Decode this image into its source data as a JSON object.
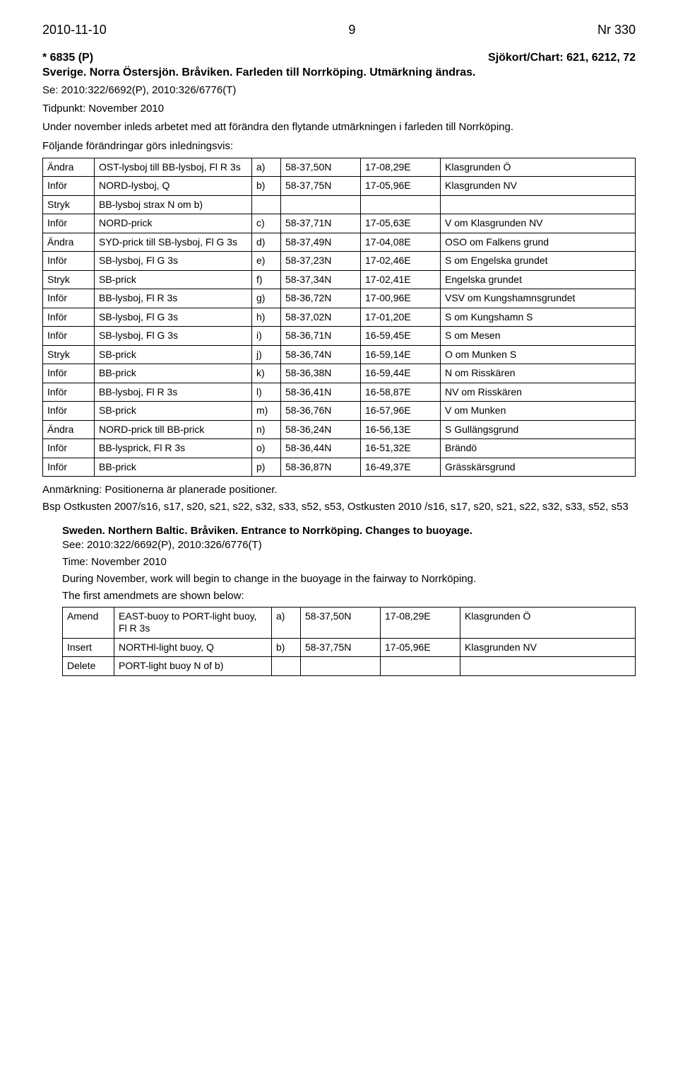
{
  "header": {
    "date": "2010-11-10",
    "page": "9",
    "issue": "Nr 330"
  },
  "notice": {
    "ref": "* 6835 (P)",
    "chart": "Sjökort/Chart: 621, 6212, 72",
    "title": "Sverige. Norra Östersjön. Bråviken. Farleden till Norrköping. Utmärkning ändras.",
    "see": "Se: 2010:322/6692(P), 2010:326/6776(T)",
    "time": "Tidpunkt: November 2010",
    "intro1": "Under november inleds arbetet med att förändra den flytande utmärkningen i farleden till Norrköping.",
    "intro2": "Följande förändringar görs inledningsvis:"
  },
  "rows": [
    {
      "a": "Ändra",
      "d": "OST-lysboj till BB-lysboj, Fl R 3s",
      "l": "a)",
      "lat": "58-37,50N",
      "lon": "17-08,29E",
      "n": "Klasgrunden Ö"
    },
    {
      "a": "Inför",
      "d": "NORD-lysboj, Q",
      "l": "b)",
      "lat": "58-37,75N",
      "lon": "17-05,96E",
      "n": "Klasgrunden NV"
    },
    {
      "a": "Stryk",
      "d": "BB-lysboj strax N om b)",
      "l": "",
      "lat": "",
      "lon": "",
      "n": ""
    },
    {
      "a": "Inför",
      "d": "NORD-prick",
      "l": "c)",
      "lat": "58-37,71N",
      "lon": "17-05,63E",
      "n": "V om Klasgrunden NV"
    },
    {
      "a": "Ändra",
      "d": "SYD-prick till SB-lysboj, Fl G 3s",
      "l": "d)",
      "lat": "58-37,49N",
      "lon": "17-04,08E",
      "n": "OSO om Falkens grund"
    },
    {
      "a": "Inför",
      "d": "SB-lysboj, Fl G 3s",
      "l": "e)",
      "lat": "58-37,23N",
      "lon": "17-02,46E",
      "n": "S om Engelska grundet"
    },
    {
      "a": "Stryk",
      "d": "SB-prick",
      "l": "f)",
      "lat": "58-37,34N",
      "lon": "17-02,41E",
      "n": "Engelska grundet"
    },
    {
      "a": "Inför",
      "d": "BB-lysboj, Fl R 3s",
      "l": "g)",
      "lat": "58-36,72N",
      "lon": "17-00,96E",
      "n": "VSV om Kungshamnsgrundet"
    },
    {
      "a": "Inför",
      "d": "SB-lysboj, Fl G 3s",
      "l": "h)",
      "lat": "58-37,02N",
      "lon": "17-01,20E",
      "n": "S om Kungshamn S"
    },
    {
      "a": "Inför",
      "d": "SB-lysboj, Fl G 3s",
      "l": "i)",
      "lat": "58-36,71N",
      "lon": "16-59,45E",
      "n": "S om Mesen"
    },
    {
      "a": "Stryk",
      "d": "SB-prick",
      "l": "j)",
      "lat": "58-36,74N",
      "lon": "16-59,14E",
      "n": "O om Munken S"
    },
    {
      "a": "Inför",
      "d": "BB-prick",
      "l": "k)",
      "lat": "58-36,38N",
      "lon": "16-59,44E",
      "n": "N om Risskären"
    },
    {
      "a": "Inför",
      "d": "BB-lysboj, Fl R 3s",
      "l": "l)",
      "lat": "58-36,41N",
      "lon": "16-58,87E",
      "n": "NV om Risskären"
    },
    {
      "a": "Inför",
      "d": "SB-prick",
      "l": "m)",
      "lat": "58-36,76N",
      "lon": "16-57,96E",
      "n": "V om Munken"
    },
    {
      "a": "Ändra",
      "d": "NORD-prick till BB-prick",
      "l": "n)",
      "lat": "58-36,24N",
      "lon": "16-56,13E",
      "n": "S Gullängsgrund"
    },
    {
      "a": "Inför",
      "d": "BB-lysprick, Fl R 3s",
      "l": "o)",
      "lat": "58-36,44N",
      "lon": "16-51,32E",
      "n": "Brändö"
    },
    {
      "a": "Inför",
      "d": "BB-prick",
      "l": "p)",
      "lat": "58-36,87N",
      "lon": "16-49,37E",
      "n": "Grässkärsgrund"
    }
  ],
  "remark": "Anmärkning: Positionerna är planerade positioner.",
  "refs": "Bsp Ostkusten 2007/s16, s17, s20, s21, s22, s32, s33, s52, s53, Ostkusten 2010 /s16, s17, s20, s21, s22, s32, s33, s52, s53",
  "en": {
    "title": "Sweden. Northern Baltic. Bråviken. Entrance to Norrköping. Changes to buoyage.",
    "see": "See: 2010:322/6692(P), 2010:326/6776(T)",
    "time": "Time: November 2010",
    "intro1": "During November, work will begin to change in the buoyage in the fairway to Norrköping.",
    "intro2": "The first amendmets are shown below:"
  },
  "rows_en": [
    {
      "a": "Amend",
      "d": "EAST-buoy to PORT-light buoy, Fl R 3s",
      "l": "a)",
      "lat": "58-37,50N",
      "lon": "17-08,29E",
      "n": "Klasgrunden Ö"
    },
    {
      "a": "Insert",
      "d": "NORTHl-light buoy, Q",
      "l": "b)",
      "lat": "58-37,75N",
      "lon": "17-05,96E",
      "n": "Klasgrunden NV"
    },
    {
      "a": "Delete",
      "d": "PORT-light buoy N of b)",
      "l": "",
      "lat": "",
      "lon": "",
      "n": ""
    }
  ]
}
